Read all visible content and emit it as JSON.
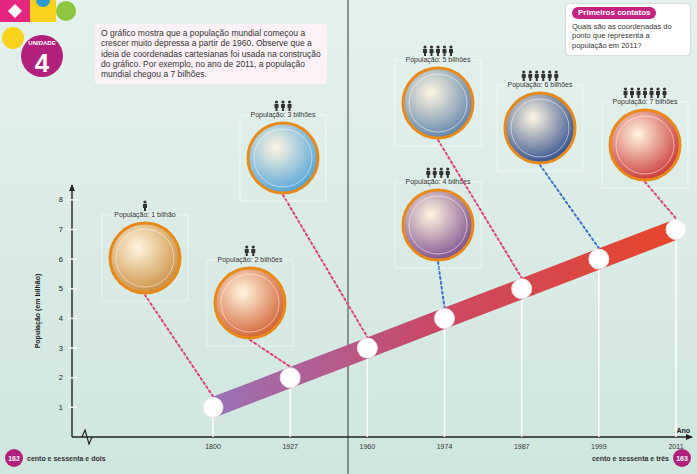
{
  "page": {
    "unit_label": "UNIDADE",
    "unit_number": "4",
    "intro": "O gráfico mostra que a população mundial começou a crescer muito depressa a partir de 1960. Observe que a ideia de coordenadas cartesianas foi usada na construção do gráfico. Por exemplo, no ano de 2011, a população mundial chegou a 7 bilhões.",
    "box_title": "Primeiros contatos",
    "box_text": "Quais são as coordenadas do ponto que representa a população em 2011?",
    "footer_left": {
      "number": "162",
      "words": "cento e sessenta e dois"
    },
    "footer_right": {
      "number": "163",
      "words": "cento e sessenta e três"
    }
  },
  "chart_data": {
    "type": "line",
    "categories": [
      "1800",
      "1927",
      "1960",
      "1974",
      "1987",
      "1999",
      "2011"
    ],
    "values": [
      1,
      2,
      3,
      4,
      5,
      6,
      7
    ],
    "value_labels": [
      "População: 1 bilhão",
      "População: 2 bilhões",
      "População: 3 bilhões",
      "População: 4 bilhões",
      "População: 5 bilhões",
      "População: 6 bilhões",
      "População: 7 bilhões"
    ],
    "data_labels": true,
    "xlabel": "Ano",
    "ylabel": "População (em bilhão)",
    "ylim": [
      0,
      8.5
    ],
    "yticks": [
      1,
      2,
      3,
      4,
      5,
      6,
      7,
      8
    ],
    "color": "#e8452a",
    "grid": false
  }
}
